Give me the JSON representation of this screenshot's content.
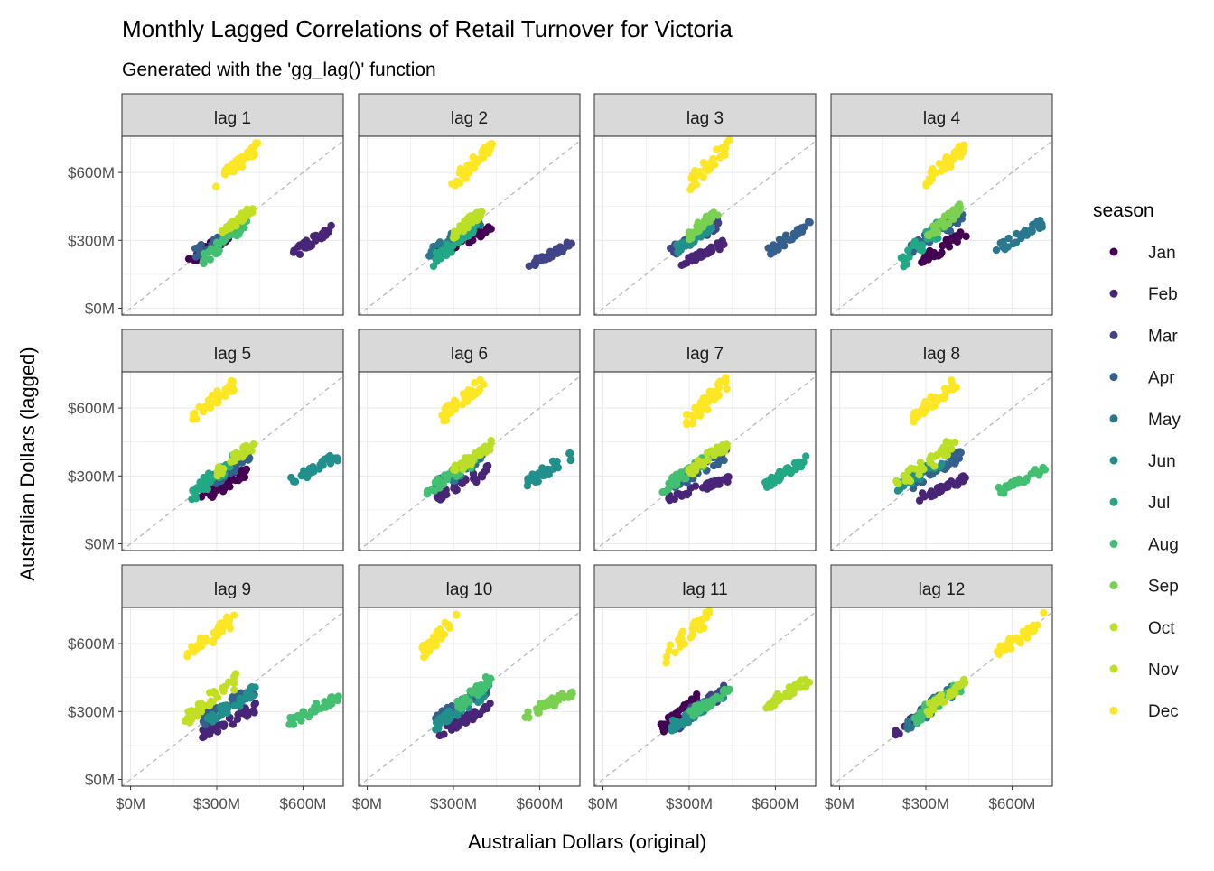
{
  "chart_data": {
    "type": "scatter",
    "title": "Monthly Lagged Correlations of Retail Turnover for Victoria",
    "subtitle": "Generated with the 'gg_lag()' function",
    "xlabel": "Australian Dollars (original)",
    "ylabel": "Australian Dollars (lagged)",
    "xlim": [
      -30,
      740
    ],
    "ylim": [
      -30,
      760
    ],
    "xticks": [
      {
        "v": 0,
        "label": "$0M"
      },
      {
        "v": 300,
        "label": "$300M"
      },
      {
        "v": 600,
        "label": "$600M"
      }
    ],
    "yticks": [
      {
        "v": 0,
        "label": "$0M"
      },
      {
        "v": 300,
        "label": "$300M"
      },
      {
        "v": 600,
        "label": "$600M"
      }
    ],
    "grid": true,
    "reference_line": "y = x",
    "legend": {
      "title": "season",
      "position": "right",
      "items": [
        {
          "label": "Jan",
          "color": "#440154"
        },
        {
          "label": "Feb",
          "color": "#482576"
        },
        {
          "label": "Mar",
          "color": "#414487"
        },
        {
          "label": "Apr",
          "color": "#35608D"
        },
        {
          "label": "May",
          "color": "#2A788E"
        },
        {
          "label": "Jun",
          "color": "#21908C"
        },
        {
          "label": "Jul",
          "color": "#22A884"
        },
        {
          "label": "Aug",
          "color": "#43BF71"
        },
        {
          "label": "Sep",
          "color": "#7AD151"
        },
        {
          "label": "Oct",
          "color": "#BBDF27"
        },
        {
          "label": "Nov",
          "color": "#C2DF23"
        },
        {
          "label": "Dec",
          "color": "#FDE725"
        }
      ]
    },
    "panels": [
      {
        "label": "lag 1",
        "clusters": [
          {
            "month": 12,
            "x": [
              300,
              440
            ],
            "y": [
              550,
              720
            ]
          },
          {
            "month": 2,
            "x": [
              570,
              720
            ],
            "y": [
              245,
              365
            ]
          },
          {
            "month": 1,
            "x": [
              200,
              350
            ],
            "y": [
              200,
              330
            ]
          },
          {
            "month": 4,
            "x": [
              230,
              400
            ],
            "y": [
              240,
              380
            ]
          },
          {
            "month": 8,
            "x": [
              250,
              410
            ],
            "y": [
              210,
              400
            ]
          },
          {
            "month": 11,
            "x": [
              320,
              420
            ],
            "y": [
              340,
              430
            ]
          }
        ]
      },
      {
        "label": "lag 2",
        "clusters": [
          {
            "month": 12,
            "x": [
              300,
              440
            ],
            "y": [
              550,
              720
            ]
          },
          {
            "month": 3,
            "x": [
              570,
              720
            ],
            "y": [
              200,
              290
            ]
          },
          {
            "month": 1,
            "x": [
              240,
              430
            ],
            "y": [
              240,
              350
            ]
          },
          {
            "month": 5,
            "x": [
              210,
              400
            ],
            "y": [
              230,
              400
            ]
          },
          {
            "month": 7,
            "x": [
              230,
              380
            ],
            "y": [
              210,
              380
            ]
          },
          {
            "month": 10,
            "x": [
              300,
              400
            ],
            "y": [
              320,
              430
            ]
          }
        ]
      },
      {
        "label": "lag 3",
        "clusters": [
          {
            "month": 12,
            "x": [
              300,
              440
            ],
            "y": [
              550,
              720
            ]
          },
          {
            "month": 4,
            "x": [
              570,
              720
            ],
            "y": [
              250,
              370
            ]
          },
          {
            "month": 2,
            "x": [
              280,
              430
            ],
            "y": [
              200,
              290
            ]
          },
          {
            "month": 3,
            "x": [
              230,
              400
            ],
            "y": [
              240,
              380
            ]
          },
          {
            "month": 6,
            "x": [
              250,
              380
            ],
            "y": [
              250,
              370
            ]
          },
          {
            "month": 9,
            "x": [
              300,
              400
            ],
            "y": [
              320,
              430
            ]
          }
        ]
      },
      {
        "label": "lag 4",
        "clusters": [
          {
            "month": 12,
            "x": [
              300,
              440
            ],
            "y": [
              560,
              720
            ]
          },
          {
            "month": 5,
            "x": [
              550,
              720
            ],
            "y": [
              260,
              390
            ]
          },
          {
            "month": 1,
            "x": [
              290,
              440
            ],
            "y": [
              210,
              340
            ]
          },
          {
            "month": 4,
            "x": [
              240,
              430
            ],
            "y": [
              260,
              400
            ]
          },
          {
            "month": 7,
            "x": [
              210,
              370
            ],
            "y": [
              200,
              380
            ]
          },
          {
            "month": 9,
            "x": [
              300,
              420
            ],
            "y": [
              310,
              440
            ]
          }
        ]
      },
      {
        "label": "lag 5",
        "clusters": [
          {
            "month": 12,
            "x": [
              200,
              370
            ],
            "y": [
              550,
              720
            ]
          },
          {
            "month": 6,
            "x": [
              550,
              720
            ],
            "y": [
              270,
              390
            ]
          },
          {
            "month": 1,
            "x": [
              250,
              400
            ],
            "y": [
              200,
              320
            ]
          },
          {
            "month": 4,
            "x": [
              240,
              420
            ],
            "y": [
              250,
              380
            ]
          },
          {
            "month": 7,
            "x": [
              200,
              360
            ],
            "y": [
              200,
              370
            ]
          },
          {
            "month": 10,
            "x": [
              300,
              430
            ],
            "y": [
              320,
              440
            ]
          }
        ]
      },
      {
        "label": "lag 6",
        "clusters": [
          {
            "month": 12,
            "x": [
              260,
              410
            ],
            "y": [
              560,
              720
            ]
          },
          {
            "month": 6,
            "x": [
              550,
              720
            ],
            "y": [
              260,
              400
            ]
          },
          {
            "month": 2,
            "x": [
              240,
              430
            ],
            "y": [
              200,
              330
            ]
          },
          {
            "month": 5,
            "x": [
              220,
              400
            ],
            "y": [
              240,
              380
            ]
          },
          {
            "month": 8,
            "x": [
              200,
              370
            ],
            "y": [
              230,
              360
            ]
          },
          {
            "month": 10,
            "x": [
              300,
              430
            ],
            "y": [
              320,
              440
            ]
          }
        ]
      },
      {
        "label": "lag 7",
        "clusters": [
          {
            "month": 12,
            "x": [
              290,
              440
            ],
            "y": [
              540,
              720
            ]
          },
          {
            "month": 7,
            "x": [
              560,
              720
            ],
            "y": [
              260,
              380
            ]
          },
          {
            "month": 2,
            "x": [
              230,
              440
            ],
            "y": [
              200,
              290
            ]
          },
          {
            "month": 4,
            "x": [
              250,
              430
            ],
            "y": [
              260,
              400
            ]
          },
          {
            "month": 8,
            "x": [
              210,
              370
            ],
            "y": [
              240,
              380
            ]
          },
          {
            "month": 10,
            "x": [
              300,
              430
            ],
            "y": [
              320,
              440
            ]
          }
        ]
      },
      {
        "label": "lag 8",
        "clusters": [
          {
            "month": 12,
            "x": [
              260,
              410
            ],
            "y": [
              560,
              720
            ]
          },
          {
            "month": 8,
            "x": [
              550,
              720
            ],
            "y": [
              230,
              340
            ]
          },
          {
            "month": 2,
            "x": [
              280,
              440
            ],
            "y": [
              200,
              290
            ]
          },
          {
            "month": 4,
            "x": [
              250,
              430
            ],
            "y": [
              260,
              400
            ]
          },
          {
            "month": 6,
            "x": [
              200,
              370
            ],
            "y": [
              250,
              380
            ]
          },
          {
            "month": 10,
            "x": [
              200,
              400
            ],
            "y": [
              260,
              440
            ]
          }
        ]
      },
      {
        "label": "lag 9",
        "clusters": [
          {
            "month": 12,
            "x": [
              200,
              370
            ],
            "y": [
              550,
              720
            ]
          },
          {
            "month": 8,
            "x": [
              550,
              720
            ],
            "y": [
              250,
              360
            ]
          },
          {
            "month": 2,
            "x": [
              250,
              440
            ],
            "y": [
              200,
              320
            ]
          },
          {
            "month": 4,
            "x": [
              250,
              430
            ],
            "y": [
              260,
              400
            ]
          },
          {
            "month": 6,
            "x": [
              270,
              430
            ],
            "y": [
              260,
              390
            ]
          },
          {
            "month": 11,
            "x": [
              190,
              370
            ],
            "y": [
              260,
              440
            ]
          }
        ]
      },
      {
        "label": "lag 10",
        "clusters": [
          {
            "month": 12,
            "x": [
              190,
              310
            ],
            "y": [
              560,
              720
            ]
          },
          {
            "month": 9,
            "x": [
              550,
              720
            ],
            "y": [
              280,
              390
            ]
          },
          {
            "month": 2,
            "x": [
              240,
              430
            ],
            "y": [
              200,
              320
            ]
          },
          {
            "month": 4,
            "x": [
              230,
              430
            ],
            "y": [
              260,
              400
            ]
          },
          {
            "month": 6,
            "x": [
              240,
              410
            ],
            "y": [
              240,
              390
            ]
          },
          {
            "month": 8,
            "x": [
              290,
              430
            ],
            "y": [
              300,
              440
            ]
          }
        ]
      },
      {
        "label": "lag 11",
        "clusters": [
          {
            "month": 12,
            "x": [
              210,
              370
            ],
            "y": [
              540,
              720
            ]
          },
          {
            "month": 10,
            "x": [
              560,
              720
            ],
            "y": [
              320,
              440
            ]
          },
          {
            "month": 1,
            "x": [
              200,
              330
            ],
            "y": [
              220,
              360
            ]
          },
          {
            "month": 3,
            "x": [
              240,
              420
            ],
            "y": [
              230,
              390
            ]
          },
          {
            "month": 6,
            "x": [
              240,
              430
            ],
            "y": [
              230,
              380
            ]
          },
          {
            "month": 8,
            "x": [
              300,
              440
            ],
            "y": [
              290,
              390
            ]
          }
        ]
      },
      {
        "label": "lag 12",
        "clusters": [
          {
            "month": 12,
            "x": [
              550,
              720
            ],
            "y": [
              560,
              720
            ]
          },
          {
            "month": 2,
            "x": [
              200,
              320
            ],
            "y": [
              200,
              330
            ]
          },
          {
            "month": 5,
            "x": [
              230,
              400
            ],
            "y": [
              230,
              400
            ]
          },
          {
            "month": 8,
            "x": [
              260,
              420
            ],
            "y": [
              260,
              420
            ]
          },
          {
            "month": 10,
            "x": [
              300,
              440
            ],
            "y": [
              300,
              440
            ]
          }
        ]
      }
    ]
  }
}
